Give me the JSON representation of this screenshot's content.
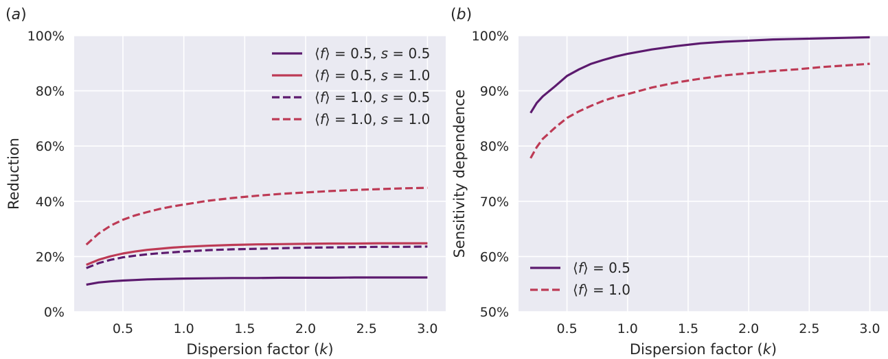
{
  "chart_data": [
    {
      "type": "line",
      "panel_label": "(a)",
      "xlabel": "Dispersion factor (k)",
      "ylabel": "Reduction",
      "xlim": [
        0.1,
        3.15
      ],
      "ylim": [
        0,
        100
      ],
      "xticks": [
        0.5,
        1.0,
        1.5,
        2.0,
        2.5,
        3.0
      ],
      "xtick_labels": [
        "0.5",
        "1.0",
        "1.5",
        "2.0",
        "2.5",
        "3.0"
      ],
      "yticks": [
        0,
        20,
        40,
        60,
        80,
        100
      ],
      "ytick_labels": [
        "0%",
        "20%",
        "40%",
        "60%",
        "80%",
        "100%"
      ],
      "grid": true,
      "legend_position": "top-right",
      "x": [
        0.2,
        0.3,
        0.4,
        0.5,
        0.6,
        0.7,
        0.8,
        0.9,
        1.0,
        1.2,
        1.4,
        1.6,
        1.8,
        2.0,
        2.2,
        2.4,
        2.6,
        2.8,
        3.0
      ],
      "series": [
        {
          "name": "⟨f⟩ = 0.5, s = 0.5",
          "color": "#5c1a6e",
          "dash": "solid",
          "values": [
            9.8,
            10.6,
            11.0,
            11.3,
            11.5,
            11.7,
            11.8,
            11.9,
            12.0,
            12.1,
            12.2,
            12.2,
            12.3,
            12.3,
            12.3,
            12.4,
            12.4,
            12.4,
            12.4
          ]
        },
        {
          "name": "⟨f⟩ = 0.5, s = 1.0",
          "color": "#bd3a55",
          "dash": "solid",
          "values": [
            17.0,
            18.8,
            20.1,
            21.1,
            21.8,
            22.4,
            22.8,
            23.2,
            23.5,
            23.9,
            24.2,
            24.4,
            24.5,
            24.6,
            24.7,
            24.7,
            24.8,
            24.8,
            24.8
          ]
        },
        {
          "name": "⟨f⟩ = 1.0, s = 0.5",
          "color": "#5c1a6e",
          "dash": "dashed",
          "values": [
            15.8,
            17.6,
            18.8,
            19.7,
            20.3,
            20.8,
            21.2,
            21.5,
            21.8,
            22.3,
            22.6,
            22.8,
            23.0,
            23.2,
            23.3,
            23.4,
            23.5,
            23.5,
            23.6
          ]
        },
        {
          "name": "⟨f⟩ = 1.0, s = 1.0",
          "color": "#bd3a55",
          "dash": "dashed",
          "values": [
            24.3,
            28.3,
            31.2,
            33.3,
            34.9,
            36.1,
            37.2,
            38.1,
            38.8,
            40.2,
            41.2,
            42.0,
            42.7,
            43.2,
            43.7,
            44.1,
            44.4,
            44.7,
            44.9
          ]
        }
      ]
    },
    {
      "type": "line",
      "panel_label": "(b)",
      "xlabel": "Dispersion factor (k)",
      "ylabel": "Sensitivity dependence",
      "xlim": [
        0.1,
        3.15
      ],
      "ylim": [
        50,
        100
      ],
      "xticks": [
        0.5,
        1.0,
        1.5,
        2.0,
        2.5,
        3.0
      ],
      "xtick_labels": [
        "0.5",
        "1.0",
        "1.5",
        "2.0",
        "2.5",
        "3.0"
      ],
      "yticks": [
        50,
        60,
        70,
        80,
        90,
        100
      ],
      "ytick_labels": [
        "50%",
        "60%",
        "70%",
        "80%",
        "90%",
        "100%"
      ],
      "grid": true,
      "legend_position": "bottom-left",
      "x": [
        0.2,
        0.25,
        0.3,
        0.4,
        0.5,
        0.6,
        0.7,
        0.8,
        0.9,
        1.0,
        1.2,
        1.4,
        1.6,
        1.8,
        2.0,
        2.2,
        2.4,
        2.6,
        2.8,
        3.0
      ],
      "series": [
        {
          "name": "⟨f⟩ = 0.5",
          "color": "#5c1a6e",
          "dash": "solid",
          "values": [
            86.0,
            87.8,
            89.0,
            90.8,
            92.7,
            93.9,
            94.9,
            95.6,
            96.2,
            96.7,
            97.5,
            98.1,
            98.6,
            98.9,
            99.1,
            99.3,
            99.4,
            99.5,
            99.6,
            99.7
          ]
        },
        {
          "name": "⟨f⟩ = 1.0",
          "color": "#bd3a55",
          "dash": "dashed",
          "values": [
            77.8,
            79.8,
            81.3,
            83.3,
            85.1,
            86.3,
            87.3,
            88.2,
            88.9,
            89.4,
            90.6,
            91.5,
            92.2,
            92.8,
            93.2,
            93.6,
            93.9,
            94.3,
            94.6,
            94.9
          ]
        }
      ]
    }
  ]
}
